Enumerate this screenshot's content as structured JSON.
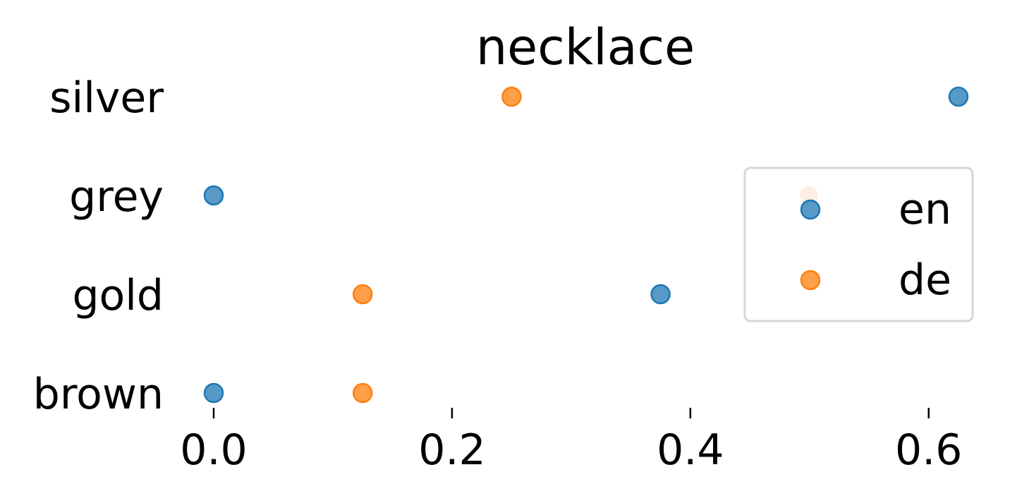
{
  "chart_data": {
    "type": "scatter",
    "title": "necklace",
    "xlabel": "",
    "ylabel": "",
    "categories": [
      "silver",
      "grey",
      "gold",
      "brown"
    ],
    "xlim": [
      -0.035,
      0.635
    ],
    "xticks": [
      0.0,
      0.2,
      0.4,
      0.6
    ],
    "xtick_labels": [
      "0.0",
      "0.2",
      "0.4",
      "0.6"
    ],
    "grid": false,
    "legend_position": "right",
    "series": [
      {
        "name": "en",
        "color": "#1f77b4",
        "points": [
          {
            "category": "silver",
            "x": 0.625
          },
          {
            "category": "grey",
            "x": 0.0
          },
          {
            "category": "gold",
            "x": 0.375
          },
          {
            "category": "brown",
            "x": 0.0
          }
        ]
      },
      {
        "name": "de",
        "color": "#ff7f0e",
        "points": [
          {
            "category": "silver",
            "x": 0.25
          },
          {
            "category": "gold",
            "x": 0.125
          },
          {
            "category": "brown",
            "x": 0.125
          }
        ]
      }
    ]
  }
}
